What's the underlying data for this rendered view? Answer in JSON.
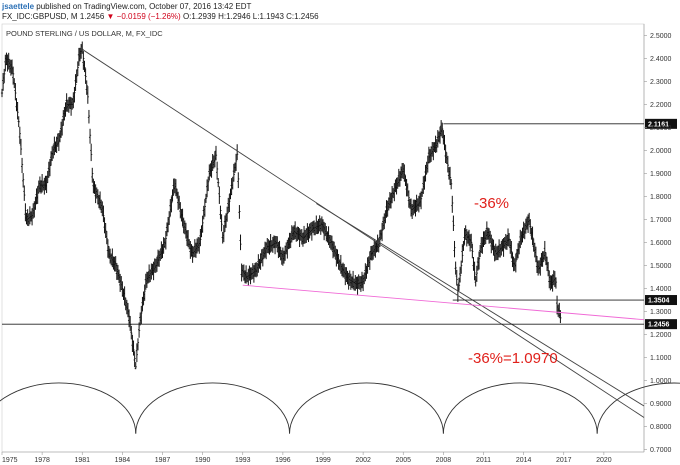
{
  "header": {
    "user": "jsaettele",
    "published_text": "published on TradingView.com, October 07, 2016 13:42 EDT",
    "symbol_line": "FX_IDC:GBPUSD, M",
    "last": "1.2456",
    "change": "▼ −0.0159 (−1.26%)",
    "ohlc": "O:1.2939 H:1.2946 L:1.1943 C:1.2456"
  },
  "chart_data": {
    "type": "ohlc",
    "title": "POUND STERLING / US DOLLAR, M, FX_IDC",
    "x_ticks": [
      "1975",
      "1978",
      "1981",
      "1984",
      "1987",
      "1990",
      "1993",
      "1996",
      "1999",
      "2002",
      "2005",
      "2008",
      "2011",
      "2014",
      "2017",
      "2020"
    ],
    "y_ticks": [
      "2.5000",
      "2.4000",
      "2.3000",
      "2.2000",
      "2.1000",
      "2.0000",
      "1.9000",
      "1.8000",
      "1.7000",
      "1.6000",
      "1.5000",
      "1.4000",
      "1.3000",
      "1.2000",
      "1.1000",
      "1.0000",
      "0.9000",
      "0.8000",
      "0.7000"
    ],
    "xlim": [
      1975.0,
      2023.0
    ],
    "ylim": [
      0.69,
      2.55
    ],
    "price_path": [
      [
        1975.0,
        2.25
      ],
      [
        1975.3,
        2.4
      ],
      [
        1975.8,
        2.35
      ],
      [
        1976.3,
        2.1
      ],
      [
        1976.8,
        1.7
      ],
      [
        1977.3,
        1.72
      ],
      [
        1977.8,
        1.85
      ],
      [
        1978.3,
        1.85
      ],
      [
        1978.8,
        2.0
      ],
      [
        1979.3,
        2.05
      ],
      [
        1979.8,
        2.2
      ],
      [
        1980.3,
        2.2
      ],
      [
        1980.8,
        2.42
      ],
      [
        1981.0,
        2.44
      ],
      [
        1981.4,
        2.25
      ],
      [
        1981.8,
        1.85
      ],
      [
        1982.5,
        1.75
      ],
      [
        1983.0,
        1.55
      ],
      [
        1983.5,
        1.5
      ],
      [
        1984.0,
        1.4
      ],
      [
        1984.5,
        1.28
      ],
      [
        1985.0,
        1.06
      ],
      [
        1985.3,
        1.25
      ],
      [
        1985.8,
        1.44
      ],
      [
        1986.5,
        1.5
      ],
      [
        1987.2,
        1.6
      ],
      [
        1987.9,
        1.86
      ],
      [
        1988.5,
        1.7
      ],
      [
        1989.2,
        1.55
      ],
      [
        1989.8,
        1.6
      ],
      [
        1990.5,
        1.9
      ],
      [
        1991.0,
        1.98
      ],
      [
        1991.5,
        1.62
      ],
      [
        1992.0,
        1.78
      ],
      [
        1992.6,
        1.99
      ],
      [
        1992.9,
        1.48
      ],
      [
        1993.3,
        1.45
      ],
      [
        1994.0,
        1.48
      ],
      [
        1994.8,
        1.58
      ],
      [
        1995.5,
        1.6
      ],
      [
        1996.0,
        1.53
      ],
      [
        1996.8,
        1.65
      ],
      [
        1997.5,
        1.62
      ],
      [
        1998.2,
        1.66
      ],
      [
        1998.9,
        1.68
      ],
      [
        1999.6,
        1.6
      ],
      [
        2000.3,
        1.5
      ],
      [
        2000.9,
        1.44
      ],
      [
        2001.5,
        1.42
      ],
      [
        2002.0,
        1.43
      ],
      [
        2002.6,
        1.55
      ],
      [
        2003.2,
        1.6
      ],
      [
        2003.8,
        1.75
      ],
      [
        2004.5,
        1.85
      ],
      [
        2005.0,
        1.92
      ],
      [
        2005.6,
        1.74
      ],
      [
        2006.3,
        1.78
      ],
      [
        2006.9,
        1.97
      ],
      [
        2007.5,
        2.03
      ],
      [
        2007.9,
        2.1
      ],
      [
        2008.2,
        1.98
      ],
      [
        2008.6,
        1.85
      ],
      [
        2008.9,
        1.5
      ],
      [
        2009.1,
        1.38
      ],
      [
        2009.6,
        1.64
      ],
      [
        2010.1,
        1.6
      ],
      [
        2010.4,
        1.43
      ],
      [
        2010.8,
        1.58
      ],
      [
        2011.3,
        1.65
      ],
      [
        2011.9,
        1.55
      ],
      [
        2012.4,
        1.58
      ],
      [
        2012.9,
        1.62
      ],
      [
        2013.3,
        1.49
      ],
      [
        2013.8,
        1.62
      ],
      [
        2014.4,
        1.7
      ],
      [
        2014.8,
        1.58
      ],
      [
        2015.1,
        1.48
      ],
      [
        2015.6,
        1.56
      ],
      [
        2016.0,
        1.42
      ],
      [
        2016.4,
        1.45
      ],
      [
        2016.5,
        1.32
      ],
      [
        2016.7,
        1.3
      ],
      [
        2016.8,
        1.2456
      ]
    ],
    "low_1985": 1.05,
    "spike_low_2016": 1.1943,
    "trendlines": [
      {
        "name": "long-downtrend",
        "x": [
          1981.0,
          2023.0
        ],
        "y": [
          2.44,
          0.84
        ],
        "color": "#444444"
      },
      {
        "name": "parallel-downtrend",
        "x": [
          1998.5,
          2023.0
        ],
        "y": [
          1.77,
          0.89
        ],
        "color": "#444444"
      },
      {
        "name": "support",
        "x": [
          1993.0,
          2023.0
        ],
        "y": [
          1.415,
          1.265
        ],
        "color": "#f06ad6"
      }
    ],
    "levels": [
      {
        "value": 2.1161,
        "label": "2.1161",
        "from_x": 2008.0
      },
      {
        "value": 1.3504,
        "label": "1.3504",
        "from_x": 2008.7
      },
      {
        "value": 1.2456,
        "label": "1.2456",
        "from_x": 1975.0
      }
    ],
    "cycle_arches": {
      "starts": [
        1973.5,
        1985.0,
        1996.5,
        2008.0,
        2019.5
      ],
      "period": 11.5,
      "base": 0.77,
      "peak": 0.99
    },
    "annotations": [
      {
        "text": "-36%",
        "color": "#e0201b"
      },
      {
        "text": "-36%=1.0970",
        "color": "#e0201b"
      }
    ]
  }
}
